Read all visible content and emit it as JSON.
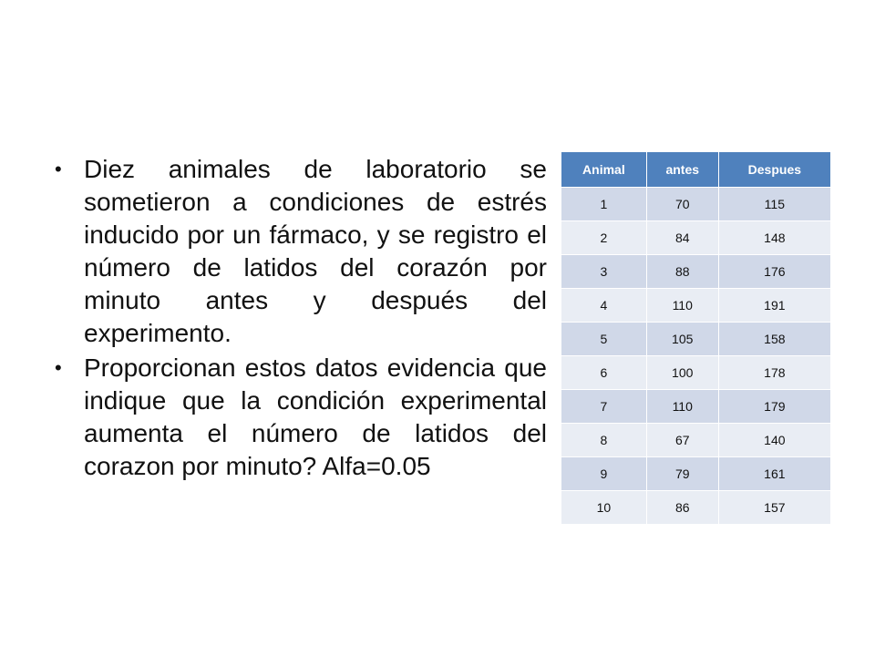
{
  "bullets": [
    "Diez animales de laboratorio se sometieron a condiciones de estrés inducido por un fármaco, y se registro el número de latidos del corazón por minuto antes y después del experimento.",
    "Proporcionan estos datos evidencia que indique que la condición experimental aumenta el número de latidos del corazon por minuto? Alfa=0.05"
  ],
  "table": {
    "headers": [
      "Animal",
      "antes",
      "Despues"
    ],
    "rows": [
      [
        "1",
        "70",
        "115"
      ],
      [
        "2",
        "84",
        "148"
      ],
      [
        "3",
        "88",
        "176"
      ],
      [
        "4",
        "110",
        "191"
      ],
      [
        "5",
        "105",
        "158"
      ],
      [
        "6",
        "100",
        "178"
      ],
      [
        "7",
        "110",
        "179"
      ],
      [
        "8",
        "67",
        "140"
      ],
      [
        "9",
        "79",
        "161"
      ],
      [
        "10",
        "86",
        "157"
      ]
    ]
  },
  "colors": {
    "header_bg": "#4f81bd",
    "row_odd_bg": "#d0d8e8",
    "row_even_bg": "#e9edf4",
    "text": "#111111"
  }
}
